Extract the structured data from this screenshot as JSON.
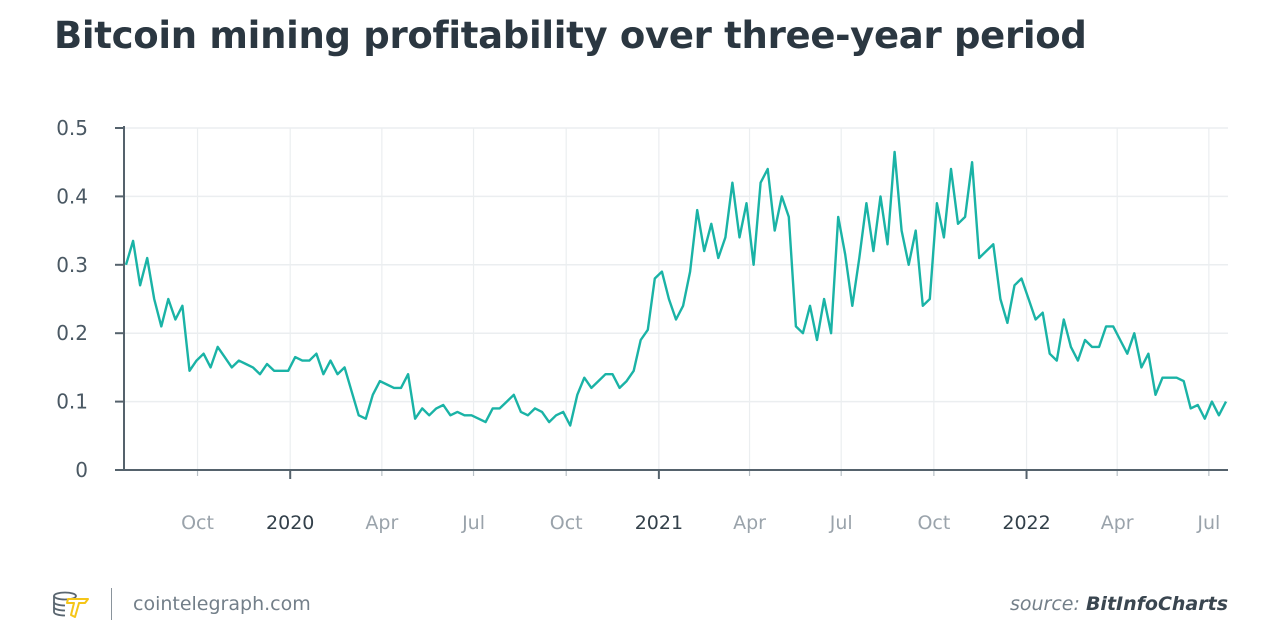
{
  "colors": {
    "line": "#1ab3a6",
    "title": "#2b3741",
    "grid": "#ebeef0",
    "axis": "#55626c",
    "logo_coin": "#5a6670",
    "logo_bolt": "#f5c518"
  },
  "footer": {
    "site": "cointelegraph.com",
    "source_prefix": "source: ",
    "source_name": "BitInfoCharts",
    "logo": "cointelegraph coins-lightning logo"
  },
  "chart_data": {
    "type": "line",
    "title": "Bitcoin mining profitability over three-year period",
    "xlabel": "",
    "ylabel": "",
    "ylim": [
      0,
      0.5
    ],
    "xlim": [
      "2019-07-20",
      "2022-07-20"
    ],
    "grid": true,
    "yticks": [
      "0",
      "0.1",
      "0.2",
      "0.3",
      "0.4",
      "0.5"
    ],
    "xticks": [
      {
        "date": "2019-10-01",
        "label": "Oct",
        "year": false
      },
      {
        "date": "2020-01-01",
        "label": "2020",
        "year": true
      },
      {
        "date": "2020-04-01",
        "label": "Apr",
        "year": false
      },
      {
        "date": "2020-07-01",
        "label": "Jul",
        "year": false
      },
      {
        "date": "2020-10-01",
        "label": "Oct",
        "year": false
      },
      {
        "date": "2021-01-01",
        "label": "2021",
        "year": true
      },
      {
        "date": "2021-04-01",
        "label": "Apr",
        "year": false
      },
      {
        "date": "2021-07-01",
        "label": "Jul",
        "year": false
      },
      {
        "date": "2021-10-01",
        "label": "Oct",
        "year": false
      },
      {
        "date": "2022-01-01",
        "label": "2022",
        "year": true
      },
      {
        "date": "2022-04-01",
        "label": "Apr",
        "year": false
      },
      {
        "date": "2022-07-01",
        "label": "Jul",
        "year": false
      }
    ],
    "series": [
      {
        "x": [
          "2019-07-22",
          "2019-07-29",
          "2019-08-05",
          "2019-08-12",
          "2019-08-19",
          "2019-08-26",
          "2019-09-02",
          "2019-09-09",
          "2019-09-16",
          "2019-09-23",
          "2019-09-30",
          "2019-10-07",
          "2019-10-14",
          "2019-10-21",
          "2019-10-28",
          "2019-11-04",
          "2019-11-11",
          "2019-11-18",
          "2019-11-25",
          "2019-12-02",
          "2019-12-09",
          "2019-12-16",
          "2019-12-23",
          "2019-12-30",
          "2020-01-06",
          "2020-01-13",
          "2020-01-20",
          "2020-01-27",
          "2020-02-03",
          "2020-02-10",
          "2020-02-17",
          "2020-02-24",
          "2020-03-02",
          "2020-03-09",
          "2020-03-16",
          "2020-03-23",
          "2020-03-30",
          "2020-04-06",
          "2020-04-13",
          "2020-04-20",
          "2020-04-27",
          "2020-05-04",
          "2020-05-11",
          "2020-05-18",
          "2020-05-25",
          "2020-06-01",
          "2020-06-08",
          "2020-06-15",
          "2020-06-22",
          "2020-06-29",
          "2020-07-06",
          "2020-07-13",
          "2020-07-20",
          "2020-07-27",
          "2020-08-03",
          "2020-08-10",
          "2020-08-17",
          "2020-08-24",
          "2020-08-31",
          "2020-09-07",
          "2020-09-14",
          "2020-09-21",
          "2020-09-28",
          "2020-10-05",
          "2020-10-12",
          "2020-10-19",
          "2020-10-26",
          "2020-11-02",
          "2020-11-09",
          "2020-11-16",
          "2020-11-23",
          "2020-11-30",
          "2020-12-07",
          "2020-12-14",
          "2020-12-21",
          "2020-12-28",
          "2021-01-04",
          "2021-01-11",
          "2021-01-18",
          "2021-01-25",
          "2021-02-01",
          "2021-02-08",
          "2021-02-15",
          "2021-02-22",
          "2021-03-01",
          "2021-03-08",
          "2021-03-15",
          "2021-03-22",
          "2021-03-29",
          "2021-04-05",
          "2021-04-12",
          "2021-04-19",
          "2021-04-26",
          "2021-05-03",
          "2021-05-10",
          "2021-05-17",
          "2021-05-24",
          "2021-05-31",
          "2021-06-07",
          "2021-06-14",
          "2021-06-21",
          "2021-06-28",
          "2021-07-05",
          "2021-07-12",
          "2021-07-19",
          "2021-07-26",
          "2021-08-02",
          "2021-08-09",
          "2021-08-16",
          "2021-08-23",
          "2021-08-30",
          "2021-09-06",
          "2021-09-13",
          "2021-09-20",
          "2021-09-27",
          "2021-10-04",
          "2021-10-11",
          "2021-10-18",
          "2021-10-25",
          "2021-11-01",
          "2021-11-08",
          "2021-11-15",
          "2021-11-22",
          "2021-11-29",
          "2021-12-06",
          "2021-12-13",
          "2021-12-20",
          "2021-12-27",
          "2022-01-03",
          "2022-01-10",
          "2022-01-17",
          "2022-01-24",
          "2022-01-31",
          "2022-02-07",
          "2022-02-14",
          "2022-02-21",
          "2022-02-28",
          "2022-03-07",
          "2022-03-14",
          "2022-03-21",
          "2022-03-28",
          "2022-04-04",
          "2022-04-11",
          "2022-04-18",
          "2022-04-25",
          "2022-05-02",
          "2022-05-09",
          "2022-05-16",
          "2022-05-23",
          "2022-05-30",
          "2022-06-06",
          "2022-06-13",
          "2022-06-20",
          "2022-06-27",
          "2022-07-04",
          "2022-07-11",
          "2022-07-18"
        ],
        "y": [
          0.3,
          0.335,
          0.27,
          0.31,
          0.25,
          0.21,
          0.25,
          0.22,
          0.24,
          0.145,
          0.16,
          0.17,
          0.15,
          0.18,
          0.165,
          0.15,
          0.16,
          0.155,
          0.15,
          0.14,
          0.155,
          0.145,
          0.145,
          0.145,
          0.165,
          0.16,
          0.16,
          0.17,
          0.14,
          0.16,
          0.14,
          0.15,
          0.115,
          0.08,
          0.075,
          0.11,
          0.13,
          0.125,
          0.12,
          0.12,
          0.14,
          0.075,
          0.09,
          0.08,
          0.09,
          0.095,
          0.08,
          0.085,
          0.08,
          0.08,
          0.075,
          0.07,
          0.09,
          0.09,
          0.1,
          0.11,
          0.085,
          0.08,
          0.09,
          0.085,
          0.07,
          0.08,
          0.085,
          0.065,
          0.11,
          0.135,
          0.12,
          0.13,
          0.14,
          0.14,
          0.12,
          0.13,
          0.145,
          0.19,
          0.205,
          0.28,
          0.29,
          0.25,
          0.22,
          0.24,
          0.29,
          0.38,
          0.32,
          0.36,
          0.31,
          0.34,
          0.42,
          0.34,
          0.39,
          0.3,
          0.42,
          0.44,
          0.35,
          0.4,
          0.37,
          0.21,
          0.2,
          0.24,
          0.19,
          0.25,
          0.2,
          0.37,
          0.315,
          0.24,
          0.31,
          0.39,
          0.32,
          0.4,
          0.33,
          0.465,
          0.35,
          0.3,
          0.35,
          0.24,
          0.25,
          0.39,
          0.34,
          0.44,
          0.36,
          0.37,
          0.45,
          0.31,
          0.32,
          0.33,
          0.25,
          0.215,
          0.27,
          0.28,
          0.25,
          0.22,
          0.23,
          0.17,
          0.16,
          0.22,
          0.18,
          0.16,
          0.19,
          0.18,
          0.18,
          0.21,
          0.21,
          0.19,
          0.17,
          0.2,
          0.15,
          0.17,
          0.11,
          0.135,
          0.135,
          0.135,
          0.13,
          0.09,
          0.095,
          0.075,
          0.1,
          0.08,
          0.1
        ]
      }
    ]
  }
}
